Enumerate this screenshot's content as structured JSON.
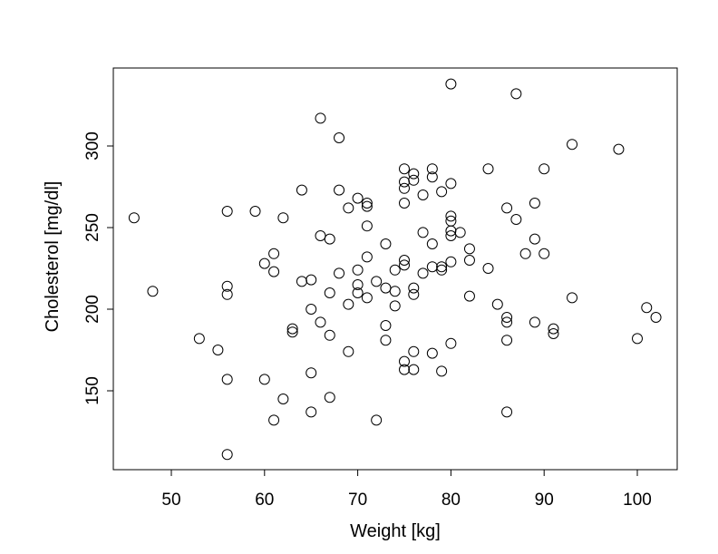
{
  "chart_data": {
    "type": "scatter",
    "title": "",
    "xlabel": "Weight [kg]",
    "ylabel": "Cholesterol [mg/dl]",
    "xlim": [
      44,
      104
    ],
    "ylim": [
      104,
      350
    ],
    "xticks": [
      50,
      60,
      70,
      80,
      90,
      100
    ],
    "yticks": [
      150,
      200,
      250,
      300
    ],
    "grid": false,
    "marker": "open-circle",
    "color": "#000000",
    "points": [
      [
        46,
        256
      ],
      [
        48,
        211
      ],
      [
        53,
        182
      ],
      [
        55,
        175
      ],
      [
        56,
        260
      ],
      [
        56,
        214
      ],
      [
        56,
        209
      ],
      [
        56,
        157
      ],
      [
        56,
        111
      ],
      [
        59,
        260
      ],
      [
        60,
        228
      ],
      [
        60,
        157
      ],
      [
        61,
        234
      ],
      [
        61,
        223
      ],
      [
        61,
        132
      ],
      [
        62,
        256
      ],
      [
        62,
        145
      ],
      [
        63,
        188
      ],
      [
        63,
        186
      ],
      [
        64,
        273
      ],
      [
        64,
        217
      ],
      [
        65,
        218
      ],
      [
        65,
        200
      ],
      [
        65,
        161
      ],
      [
        65,
        137
      ],
      [
        66,
        317
      ],
      [
        66,
        245
      ],
      [
        66,
        192
      ],
      [
        67,
        243
      ],
      [
        67,
        210
      ],
      [
        67,
        184
      ],
      [
        67,
        146
      ],
      [
        68,
        305
      ],
      [
        68,
        273
      ],
      [
        68,
        222
      ],
      [
        69,
        262
      ],
      [
        69,
        203
      ],
      [
        69,
        174
      ],
      [
        70,
        268
      ],
      [
        70,
        224
      ],
      [
        70,
        215
      ],
      [
        70,
        210
      ],
      [
        71,
        265
      ],
      [
        71,
        263
      ],
      [
        71,
        251
      ],
      [
        71,
        232
      ],
      [
        71,
        207
      ],
      [
        72,
        132
      ],
      [
        72,
        217
      ],
      [
        73,
        240
      ],
      [
        73,
        213
      ],
      [
        73,
        190
      ],
      [
        73,
        181
      ],
      [
        74,
        224
      ],
      [
        74,
        211
      ],
      [
        74,
        202
      ],
      [
        75,
        286
      ],
      [
        75,
        278
      ],
      [
        75,
        274
      ],
      [
        75,
        265
      ],
      [
        75,
        230
      ],
      [
        75,
        227
      ],
      [
        75,
        168
      ],
      [
        75,
        163
      ],
      [
        76,
        283
      ],
      [
        76,
        279
      ],
      [
        76,
        213
      ],
      [
        76,
        209
      ],
      [
        76,
        174
      ],
      [
        76,
        163
      ],
      [
        77,
        270
      ],
      [
        77,
        247
      ],
      [
        77,
        222
      ],
      [
        78,
        286
      ],
      [
        78,
        281
      ],
      [
        78,
        240
      ],
      [
        78,
        226
      ],
      [
        78,
        173
      ],
      [
        79,
        272
      ],
      [
        79,
        226
      ],
      [
        79,
        224
      ],
      [
        79,
        162
      ],
      [
        80,
        338
      ],
      [
        80,
        277
      ],
      [
        80,
        257
      ],
      [
        80,
        254
      ],
      [
        80,
        248
      ],
      [
        80,
        245
      ],
      [
        80,
        229
      ],
      [
        80,
        179
      ],
      [
        81,
        247
      ],
      [
        82,
        237
      ],
      [
        82,
        230
      ],
      [
        82,
        208
      ],
      [
        84,
        286
      ],
      [
        84,
        225
      ],
      [
        85,
        203
      ],
      [
        86,
        262
      ],
      [
        86,
        195
      ],
      [
        86,
        192
      ],
      [
        86,
        181
      ],
      [
        86,
        137
      ],
      [
        87,
        332
      ],
      [
        87,
        255
      ],
      [
        88,
        234
      ],
      [
        89,
        265
      ],
      [
        89,
        243
      ],
      [
        89,
        192
      ],
      [
        90,
        286
      ],
      [
        90,
        234
      ],
      [
        91,
        188
      ],
      [
        91,
        185
      ],
      [
        93,
        301
      ],
      [
        93,
        207
      ],
      [
        98,
        298
      ],
      [
        100,
        182
      ],
      [
        101,
        201
      ],
      [
        102,
        195
      ]
    ]
  }
}
